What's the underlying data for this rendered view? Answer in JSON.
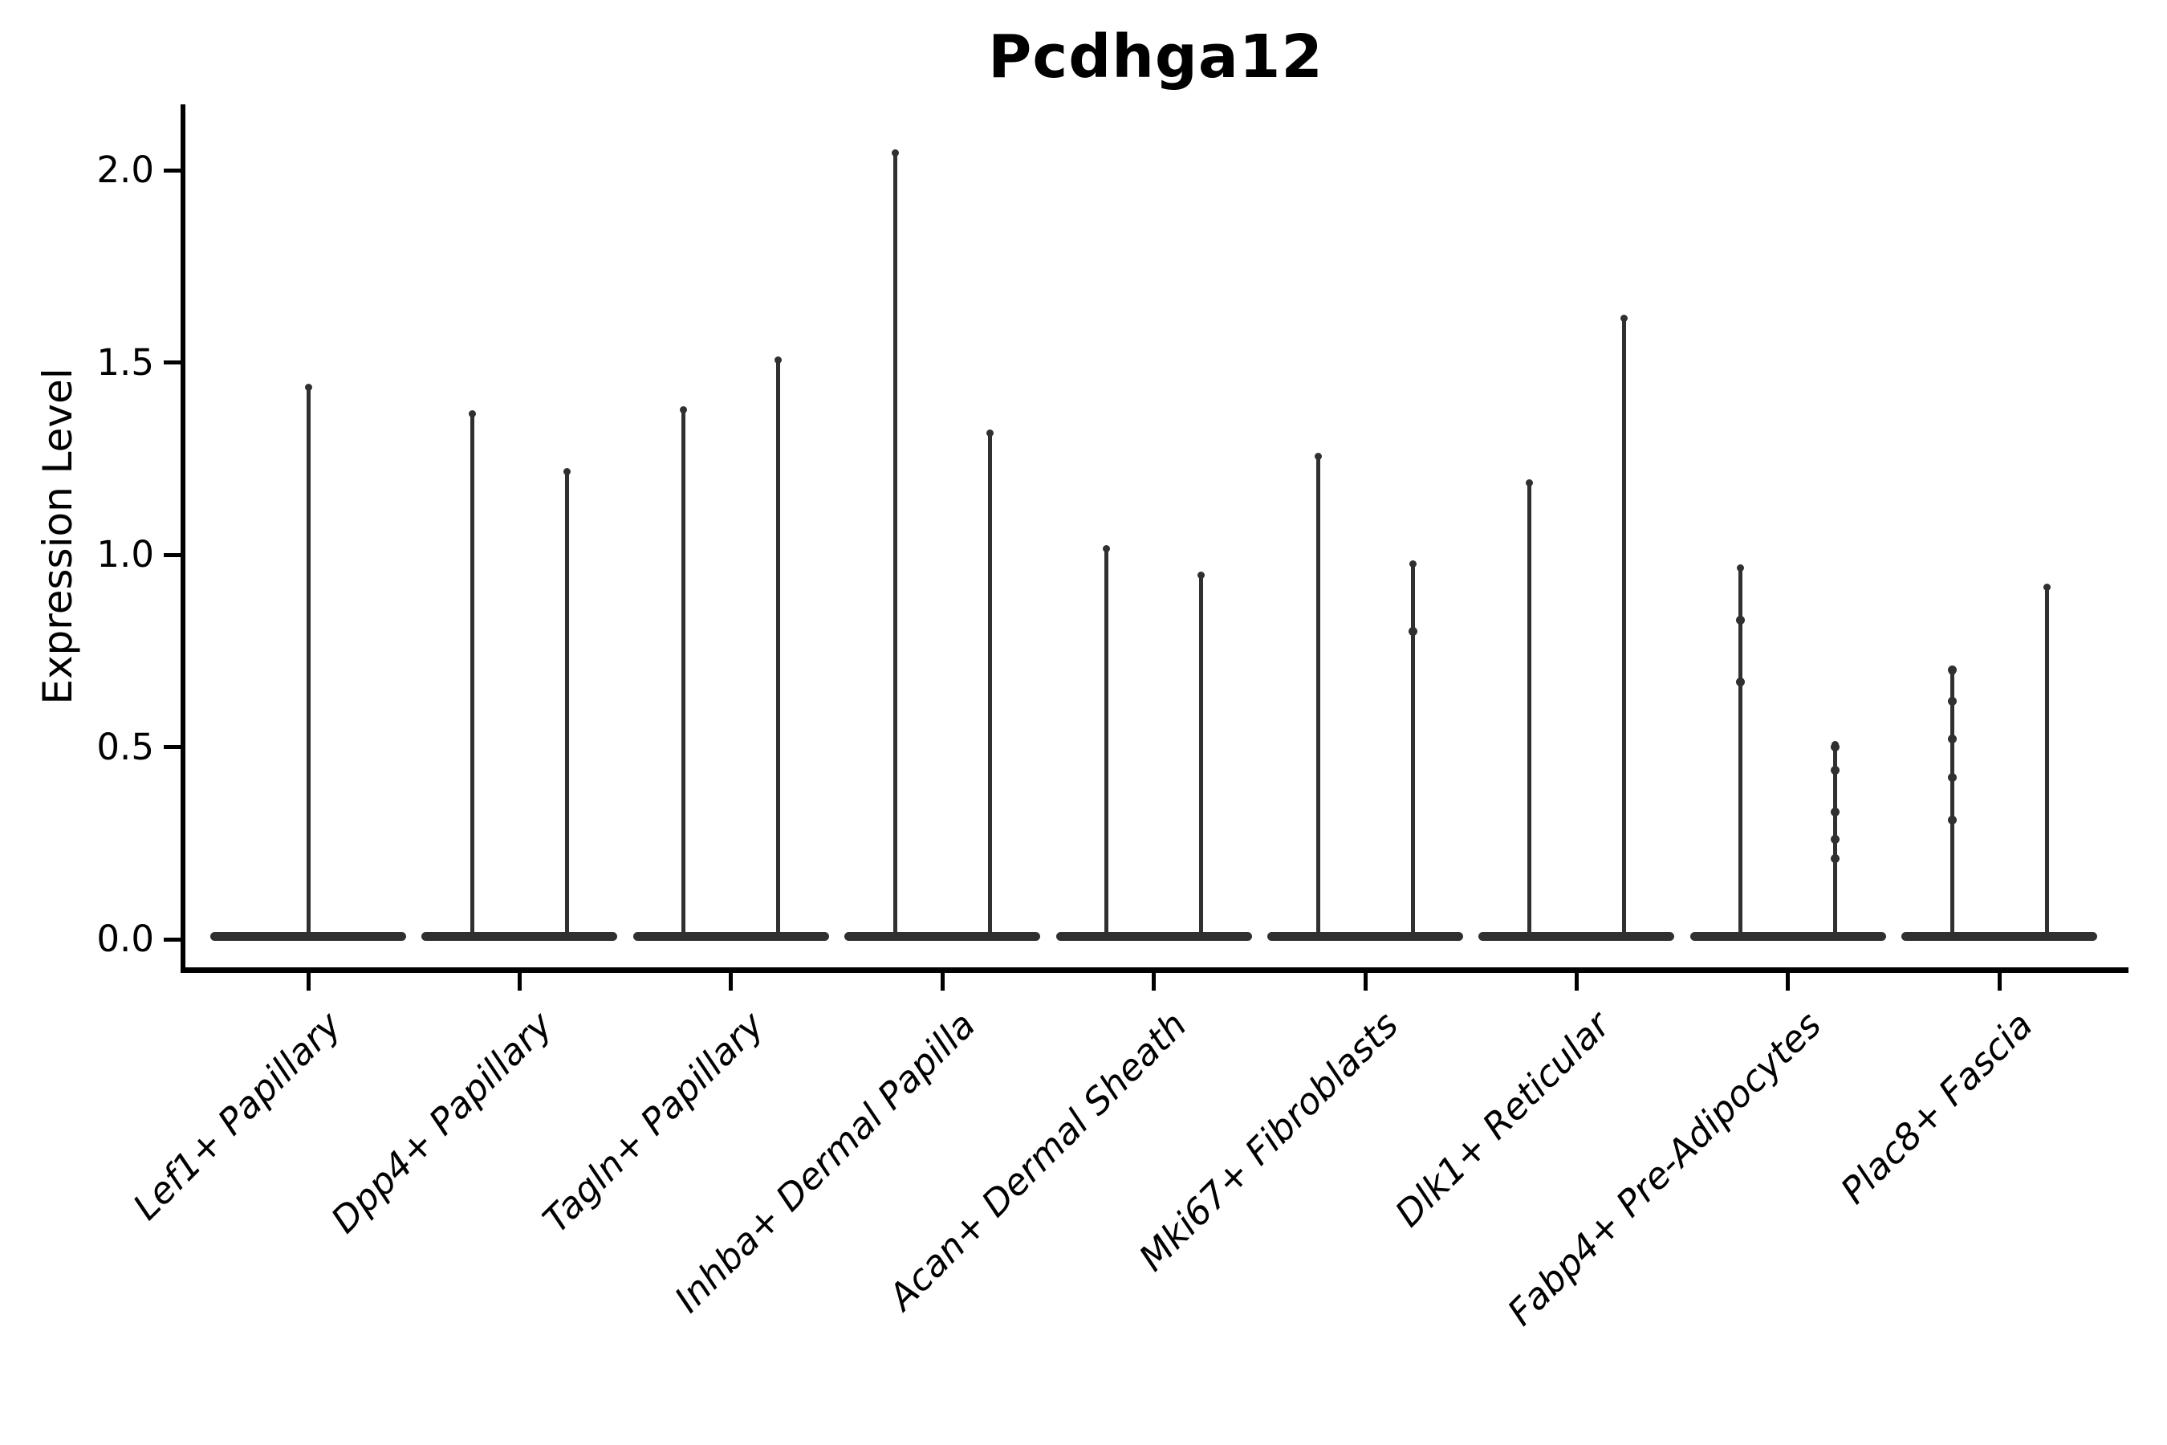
{
  "chart": {
    "title": "Pcdhga12",
    "ylabel": "Expression Level",
    "ink_color": "#000000",
    "violin_color": "#303030"
  },
  "chart_data": {
    "type": "violin",
    "title": "Pcdhga12",
    "xlabel": "",
    "ylabel": "Expression Level",
    "ylim": [
      -0.08,
      2.17
    ],
    "grid": false,
    "legend_position": "none",
    "yticks": [
      {
        "value": 0.0,
        "label": "0.0"
      },
      {
        "value": 0.5,
        "label": "0.5"
      },
      {
        "value": 1.0,
        "label": "1.0"
      },
      {
        "value": 1.5,
        "label": "1.5"
      },
      {
        "value": 2.0,
        "label": "2.0"
      }
    ],
    "description": "Violin plot of Pcdhga12 expression per fibroblast subtype; each violin collapses to a flat bar at 0 with thin spikes rising to the maximum expressed values.",
    "categories": [
      {
        "label": "Lef1+ Papillary",
        "violins": [
          {
            "pos": 0,
            "max": 1.44,
            "dots": []
          }
        ]
      },
      {
        "label": "Dpp4+ Papillary",
        "violins": [
          {
            "pos": -1,
            "max": 1.37,
            "dots": []
          },
          {
            "pos": 1,
            "max": 1.22,
            "dots": []
          }
        ]
      },
      {
        "label": "Tagln+ Papillary",
        "violins": [
          {
            "pos": -1,
            "max": 1.38,
            "dots": []
          },
          {
            "pos": 1,
            "max": 1.51,
            "dots": []
          }
        ]
      },
      {
        "label": "Inhba+ Dermal Papilla",
        "violins": [
          {
            "pos": -1,
            "max": 2.05,
            "dots": []
          },
          {
            "pos": 1,
            "max": 1.32,
            "dots": []
          }
        ]
      },
      {
        "label": "Acan+ Dermal Sheath",
        "violins": [
          {
            "pos": -1,
            "max": 1.02,
            "dots": []
          },
          {
            "pos": 1,
            "max": 0.95,
            "dots": []
          }
        ]
      },
      {
        "label": "Mki67+ Fibroblasts",
        "violins": [
          {
            "pos": -1,
            "max": 1.26,
            "dots": []
          },
          {
            "pos": 1,
            "max": 0.98,
            "dots": [
              0.8
            ]
          }
        ]
      },
      {
        "label": "Dlk1+ Reticular",
        "violins": [
          {
            "pos": -1,
            "max": 1.19,
            "dots": []
          },
          {
            "pos": 1,
            "max": 1.62,
            "dots": []
          }
        ]
      },
      {
        "label": "Fabp4+ Pre-Adipocytes",
        "violins": [
          {
            "pos": -1,
            "max": 0.97,
            "dots": [
              0.83,
              0.67
            ]
          },
          {
            "pos": 1,
            "max": 0.51,
            "dots": [
              0.5,
              0.44,
              0.33,
              0.26,
              0.21
            ]
          }
        ]
      },
      {
        "label": "Plac8+ Fascia",
        "violins": [
          {
            "pos": -1,
            "max": 0.7,
            "dots": [
              0.7,
              0.62,
              0.52,
              0.42,
              0.31
            ]
          },
          {
            "pos": 1,
            "max": 0.92,
            "dots": []
          }
        ]
      }
    ]
  }
}
